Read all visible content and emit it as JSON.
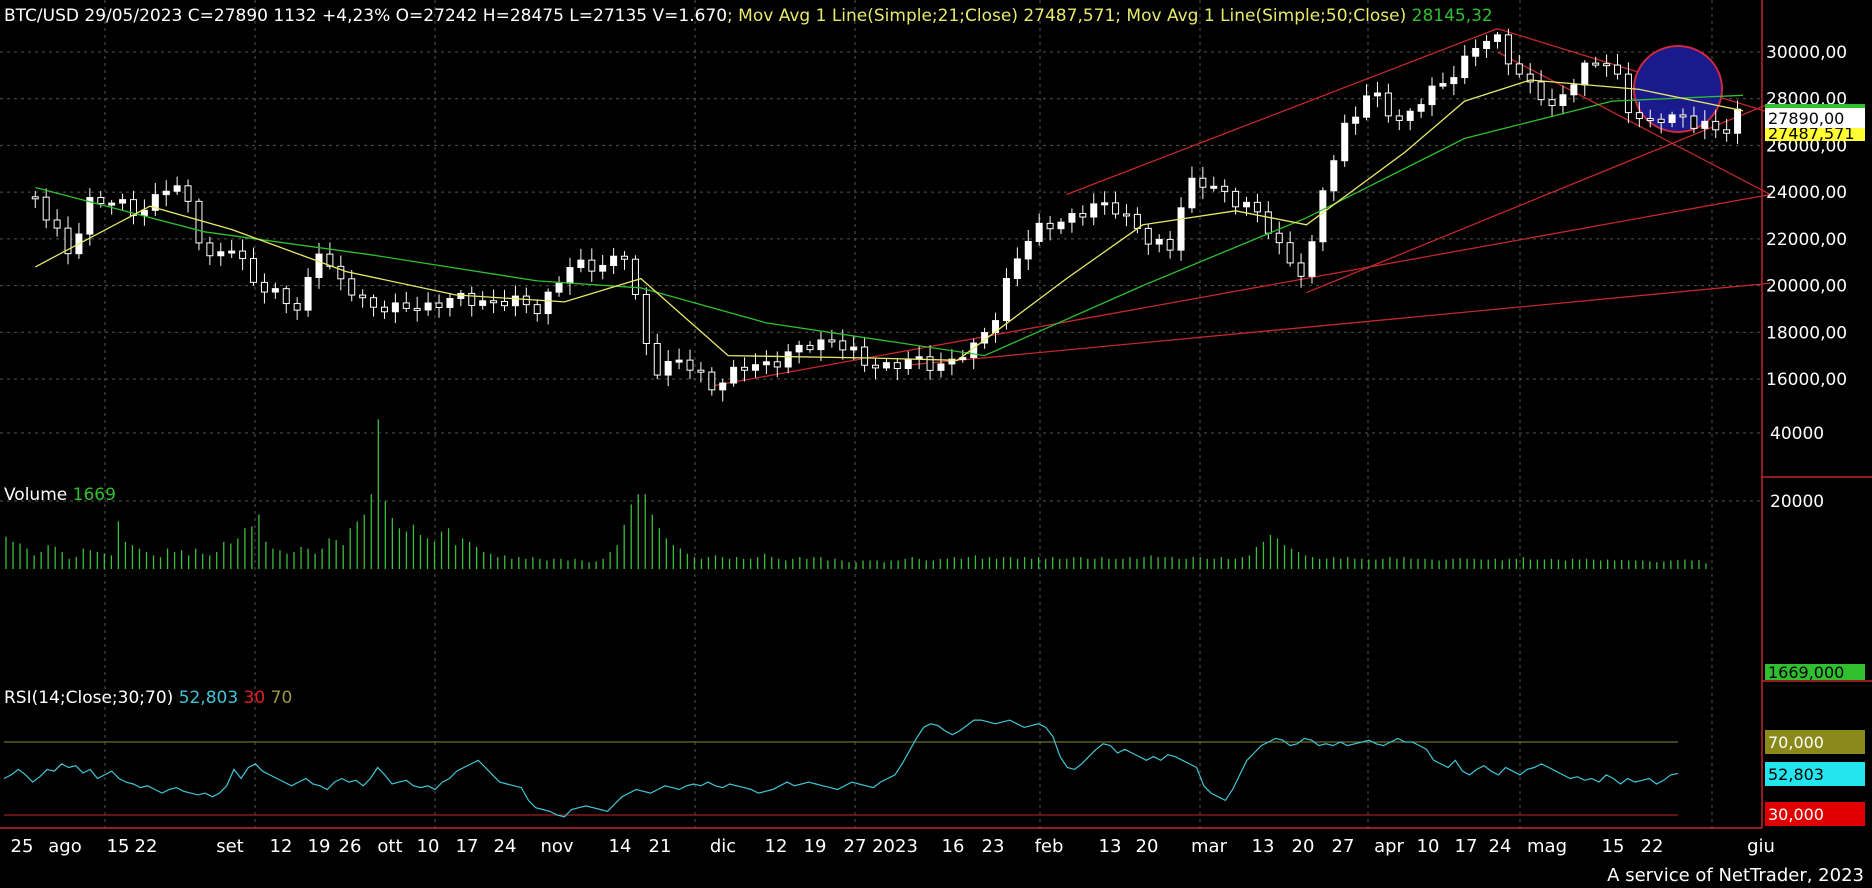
{
  "header": {
    "price_text": "BTC/USD 29/05/2023 C=27890 1132 +4,23% O=27242 H=28475 L=27135 V=1.670",
    "ma21_text": "; Mov Avg 1 Line(Simple;21;Close) 27487,571",
    "ma50_prefix": "; Mov Avg 1 Line(Simple;50;Close)",
    "ma50_value": "28145,32"
  },
  "volume_label": {
    "name": "Volume",
    "value": "1669"
  },
  "rsi_label": {
    "name": "RSI(14;Close;30;70)",
    "value": "52,803",
    "low": "30",
    "high": "70"
  },
  "footer": "A service of NetTrader, 2023",
  "colors": {
    "background": "#000000",
    "candle": "#ffffff",
    "ma21": "#e8e86a",
    "ma50": "#2fbf2f",
    "trendline": "#c0282c",
    "volume": "#3cbf3c",
    "rsi_line": "#3fc6d8",
    "highlight": "#1a1a8c",
    "grid": "#555555"
  },
  "chart_data": [
    {
      "type": "candlestick",
      "name": "BTC/USD",
      "yticks": [
        "30000,00",
        "28000,00",
        "26000,00",
        "24000,00",
        "22000,00",
        "20000,00",
        "18000,00",
        "16000,00"
      ],
      "ylim": [
        15000,
        31200
      ],
      "x_date_labels": [
        "25",
        "ago",
        "15",
        "22",
        "set",
        "12",
        "19",
        "26",
        "ott",
        "10",
        "17",
        "24",
        "nov",
        "14",
        "21",
        "dic",
        "12",
        "19",
        "27",
        "2023",
        "16",
        "23",
        "feb",
        "13",
        "20",
        "mar",
        "13",
        "20",
        "27",
        "apr",
        "10",
        "17",
        "24",
        "mag",
        "15",
        "22",
        "giu"
      ],
      "price_badges": {
        "last": "27890,00",
        "ma21": "27487,571",
        "ma50": "28145,32"
      },
      "close_points": [
        {
          "date": "2022-07-20",
          "close": 23800
        },
        {
          "date": "2022-07-26",
          "close": 21300
        },
        {
          "date": "2022-07-30",
          "close": 23700
        },
        {
          "date": "2022-08-08",
          "close": 23200
        },
        {
          "date": "2022-08-14",
          "close": 24300
        },
        {
          "date": "2022-08-18",
          "close": 23300
        },
        {
          "date": "2022-08-20",
          "close": 21100
        },
        {
          "date": "2022-08-25",
          "close": 21500
        },
        {
          "date": "2022-08-30",
          "close": 20100
        },
        {
          "date": "2022-09-06",
          "close": 18900
        },
        {
          "date": "2022-09-10",
          "close": 21700
        },
        {
          "date": "2022-09-13",
          "close": 20200
        },
        {
          "date": "2022-09-18",
          "close": 19400
        },
        {
          "date": "2022-09-24",
          "close": 18900
        },
        {
          "date": "2022-10-02",
          "close": 19300
        },
        {
          "date": "2022-10-10",
          "close": 19400
        },
        {
          "date": "2022-10-13",
          "close": 19300
        },
        {
          "date": "2022-10-20",
          "close": 19100
        },
        {
          "date": "2022-10-26",
          "close": 20700
        },
        {
          "date": "2022-11-05",
          "close": 21200
        },
        {
          "date": "2022-11-08",
          "close": 18500
        },
        {
          "date": "2022-11-10",
          "close": 16500
        },
        {
          "date": "2022-11-15",
          "close": 16700
        },
        {
          "date": "2022-11-21",
          "close": 15800
        },
        {
          "date": "2022-11-28",
          "close": 16500
        },
        {
          "date": "2022-12-05",
          "close": 17000
        },
        {
          "date": "2022-12-13",
          "close": 17800
        },
        {
          "date": "2022-12-19",
          "close": 16600
        },
        {
          "date": "2022-12-27",
          "close": 16700
        },
        {
          "date": "2023-01-01",
          "close": 16600
        },
        {
          "date": "2023-01-08",
          "close": 17200
        },
        {
          "date": "2023-01-12",
          "close": 18800
        },
        {
          "date": "2023-01-15",
          "close": 20900
        },
        {
          "date": "2023-01-21",
          "close": 22700
        },
        {
          "date": "2023-01-28",
          "close": 23000
        },
        {
          "date": "2023-02-02",
          "close": 23700
        },
        {
          "date": "2023-02-09",
          "close": 21800
        },
        {
          "date": "2023-02-13",
          "close": 21800
        },
        {
          "date": "2023-02-16",
          "close": 24300
        },
        {
          "date": "2023-02-22",
          "close": 24200
        },
        {
          "date": "2023-02-28",
          "close": 23200
        },
        {
          "date": "2023-03-03",
          "close": 22400
        },
        {
          "date": "2023-03-10",
          "close": 20200
        },
        {
          "date": "2023-03-13",
          "close": 24100
        },
        {
          "date": "2023-03-17",
          "close": 26900
        },
        {
          "date": "2023-03-22",
          "close": 28200
        },
        {
          "date": "2023-03-27",
          "close": 27100
        },
        {
          "date": "2023-04-02",
          "close": 28200
        },
        {
          "date": "2023-04-10",
          "close": 30200
        },
        {
          "date": "2023-04-14",
          "close": 30500
        },
        {
          "date": "2023-04-19",
          "close": 28800
        },
        {
          "date": "2023-04-24",
          "close": 27500
        },
        {
          "date": "2023-04-29",
          "close": 29300
        },
        {
          "date": "2023-05-05",
          "close": 29500
        },
        {
          "date": "2023-05-08",
          "close": 27700
        },
        {
          "date": "2023-05-12",
          "close": 26800
        },
        {
          "date": "2023-05-17",
          "close": 27400
        },
        {
          "date": "2023-05-22",
          "close": 26800
        },
        {
          "date": "2023-05-25",
          "close": 26300
        },
        {
          "date": "2023-05-29",
          "close": 27890
        }
      ],
      "ma21_points": [
        {
          "date": "2022-07-20",
          "value": 20800
        },
        {
          "date": "2022-08-10",
          "value": 23400
        },
        {
          "date": "2022-08-25",
          "value": 22400
        },
        {
          "date": "2022-09-15",
          "value": 20600
        },
        {
          "date": "2022-10-05",
          "value": 19600
        },
        {
          "date": "2022-10-25",
          "value": 19300
        },
        {
          "date": "2022-11-08",
          "value": 20300
        },
        {
          "date": "2022-11-24",
          "value": 17000
        },
        {
          "date": "2022-12-20",
          "value": 16900
        },
        {
          "date": "2023-01-05",
          "value": 16800
        },
        {
          "date": "2023-01-25",
          "value": 20300
        },
        {
          "date": "2023-02-08",
          "value": 22600
        },
        {
          "date": "2023-02-25",
          "value": 23200
        },
        {
          "date": "2023-03-10",
          "value": 22600
        },
        {
          "date": "2023-03-28",
          "value": 25700
        },
        {
          "date": "2023-04-08",
          "value": 27900
        },
        {
          "date": "2023-04-20",
          "value": 28800
        },
        {
          "date": "2023-05-10",
          "value": 28400
        },
        {
          "date": "2023-05-29",
          "value": 27487
        }
      ],
      "ma50_points": [
        {
          "date": "2022-07-20",
          "value": 24200
        },
        {
          "date": "2022-08-20",
          "value": 22300
        },
        {
          "date": "2022-09-20",
          "value": 21300
        },
        {
          "date": "2022-10-20",
          "value": 20200
        },
        {
          "date": "2022-11-08",
          "value": 19900
        },
        {
          "date": "2022-12-01",
          "value": 18400
        },
        {
          "date": "2023-01-10",
          "value": 17000
        },
        {
          "date": "2023-02-08",
          "value": 20000
        },
        {
          "date": "2023-03-10",
          "value": 22900
        },
        {
          "date": "2023-04-08",
          "value": 26300
        },
        {
          "date": "2023-05-05",
          "value": 27900
        },
        {
          "date": "2023-05-29",
          "value": 28145
        }
      ],
      "trendlines": [
        {
          "from": {
            "date": "2023-01-25",
            "value": 23900
          },
          "to": {
            "date": "2023-04-14",
            "value": 31000
          }
        },
        {
          "from": {
            "date": "2023-04-14",
            "value": 31000
          },
          "to": {
            "date": "2023-06-03",
            "value": 27400
          }
        },
        {
          "from": {
            "date": "2023-04-14",
            "value": 30000
          },
          "to": {
            "date": "2023-06-03",
            "value": 23900
          }
        },
        {
          "from": {
            "date": "2023-03-10",
            "value": 19700
          },
          "to": {
            "date": "2023-06-03",
            "value": 27800
          }
        },
        {
          "from": {
            "date": "2022-11-21",
            "value": 15700
          },
          "to": {
            "date": "2023-06-03",
            "value": 23900
          }
        },
        {
          "from": {
            "date": "2022-12-27",
            "value": 16600
          },
          "to": {
            "date": "2023-06-03",
            "value": 20100
          }
        }
      ]
    },
    {
      "type": "bar",
      "name": "Volume",
      "yticks": [
        "40000",
        "20000"
      ],
      "ylim": [
        0,
        52000
      ],
      "last_badge": "1669,000",
      "values": [
        9500,
        8000,
        7500,
        6000,
        4000,
        5000,
        7000,
        6500,
        5000,
        3000,
        3500,
        6000,
        5500,
        5000,
        4500,
        4000,
        14000,
        8000,
        7000,
        6000,
        5000,
        4000,
        3500,
        6000,
        5000,
        5500,
        4000,
        6000,
        4500,
        4000,
        5000,
        8000,
        7500,
        9000,
        12000,
        12500,
        16000,
        8000,
        6000,
        5500,
        4500,
        5000,
        6500,
        6000,
        4500,
        6000,
        9000,
        8500,
        7000,
        12000,
        14000,
        16000,
        22000,
        44000,
        20000,
        15000,
        12000,
        11000,
        13000,
        10000,
        9000,
        8000,
        11000,
        12000,
        7000,
        9000,
        8000,
        6500,
        5000,
        4500,
        3500,
        4000,
        3000,
        3500,
        3000,
        3500,
        3000,
        2500,
        3000,
        3000,
        2500,
        3000,
        2500,
        2000,
        2200,
        3000,
        5000,
        7000,
        13000,
        19000,
        22000,
        22000,
        16000,
        12000,
        9000,
        7000,
        6000,
        4500,
        3500,
        3000,
        3500,
        4000,
        3500,
        3000,
        3500,
        3000,
        3000,
        3500,
        4500,
        3500,
        3000,
        2500,
        3000,
        3500,
        3000,
        3500,
        3500,
        2500,
        3000,
        2500,
        2000,
        2000,
        2500,
        2500,
        2500,
        2000,
        2500,
        2500,
        3000,
        3500,
        3000,
        2500,
        2500,
        3000,
        3000,
        3500,
        3000,
        3500,
        4000,
        3000,
        3500,
        3000,
        3500,
        3500,
        3000,
        3500,
        3000,
        3500,
        3000,
        3500,
        3000,
        3000,
        3500,
        3500,
        3000,
        3000,
        3500,
        3000,
        3000,
        3000,
        3500,
        3000,
        3500,
        4000,
        3500,
        3500,
        3500,
        3000,
        3000,
        3500,
        3500,
        3000,
        3000,
        3500,
        3000,
        3000,
        3500,
        4000,
        6500,
        8000,
        10000,
        9000,
        7000,
        6000,
        5000,
        4000,
        3500,
        3000,
        3000,
        3500,
        3000,
        3500,
        3000,
        3000,
        2800,
        2800,
        3000,
        3500,
        3000,
        3500,
        3000,
        3000,
        3000,
        2800,
        2500,
        2800,
        3000,
        3200,
        3000,
        3000,
        2800,
        2800,
        3000,
        2500,
        3000,
        3000,
        3500,
        2800,
        2800,
        2800,
        3000,
        2800,
        2500,
        3000,
        2800,
        3000,
        2800,
        2500,
        2800,
        2500,
        2600,
        2500,
        2500,
        2500,
        2200,
        2000,
        2200,
        2500,
        2600,
        2800,
        2500,
        2600,
        1669
      ]
    },
    {
      "type": "line",
      "name": "RSI(14;Close;30;70)",
      "yticks": [
        "70,000",
        "30,000"
      ],
      "ylim": [
        27,
        86
      ],
      "current_badge": "52,803",
      "levels": [
        70,
        30
      ],
      "values": [
        50,
        52,
        55,
        52,
        48,
        51,
        55,
        54,
        58,
        56,
        57,
        53,
        55,
        50,
        52,
        54,
        50,
        48,
        47,
        45,
        46,
        44,
        42,
        44,
        45,
        43,
        42,
        41,
        42,
        40,
        42,
        46,
        55,
        50,
        56,
        58,
        54,
        52,
        50,
        48,
        46,
        48,
        50,
        47,
        46,
        44,
        48,
        50,
        48,
        49,
        46,
        50,
        56,
        52,
        47,
        48,
        49,
        46,
        45,
        46,
        44,
        48,
        50,
        54,
        56,
        58,
        60,
        56,
        52,
        48,
        47,
        46,
        45,
        38,
        34,
        33,
        32,
        30,
        29,
        33,
        34,
        35,
        34,
        33,
        32,
        36,
        40,
        42,
        44,
        43,
        42,
        44,
        46,
        45,
        44,
        46,
        47,
        46,
        48,
        46,
        45,
        47,
        46,
        45,
        44,
        42,
        43,
        44,
        46,
        48,
        46,
        47,
        48,
        47,
        46,
        45,
        44,
        46,
        48,
        47,
        46,
        45,
        48,
        50,
        52,
        58,
        65,
        72,
        78,
        80,
        79,
        76,
        74,
        76,
        79,
        82,
        82,
        81,
        80,
        81,
        82,
        80,
        78,
        79,
        80,
        78,
        73,
        62,
        56,
        55,
        58,
        62,
        66,
        69,
        68,
        64,
        66,
        64,
        62,
        60,
        62,
        60,
        63,
        62,
        60,
        58,
        56,
        46,
        42,
        40,
        38,
        44,
        52,
        60,
        64,
        68,
        70,
        72,
        71,
        68,
        69,
        72,
        71,
        68,
        69,
        68,
        70,
        68,
        69,
        70,
        71,
        69,
        68,
        70,
        72,
        70,
        70,
        68,
        66,
        60,
        58,
        56,
        60,
        54,
        52,
        55,
        57,
        54,
        52,
        56,
        54,
        52,
        55,
        56,
        58,
        56,
        54,
        52,
        50,
        51,
        49,
        50,
        48,
        52,
        50,
        47,
        50,
        48,
        49,
        50,
        47,
        49,
        52,
        52.803
      ]
    }
  ]
}
